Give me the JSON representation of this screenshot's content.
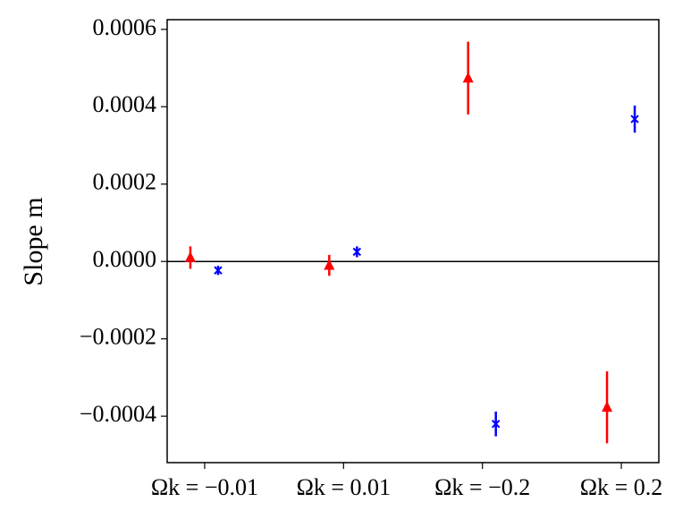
{
  "chart_data": {
    "type": "errorbar",
    "ylabel": "Slope m",
    "categories": [
      "Ωk = −0.01",
      "Ωk = 0.01",
      "Ωk = −0.2",
      "Ωk = 0.2"
    ],
    "series": [
      {
        "color": "#ff0000",
        "marker": "triangle",
        "values": [
          1e-05,
          -1e-05,
          0.000474,
          -0.000377
        ],
        "errors": [
          2.9e-05,
          2.7e-05,
          9.4e-05,
          9.3e-05
        ]
      },
      {
        "color": "#0000ff",
        "marker": "x",
        "values": [
          -2.3e-05,
          2.5e-05,
          -0.00042,
          0.000368
        ],
        "errors": [
          1.2e-05,
          1.4e-05,
          3.2e-05,
          3.5e-05
        ]
      }
    ],
    "hline": 0,
    "ylim": [
      -0.00052,
      0.000625
    ],
    "yticks": [
      {
        "value": -0.0004,
        "label": "−0.0004"
      },
      {
        "value": -0.0002,
        "label": "−0.0002"
      },
      {
        "value": 0,
        "label": "0.0000"
      },
      0.0002,
      0.0004,
      0.0006
    ]
  }
}
